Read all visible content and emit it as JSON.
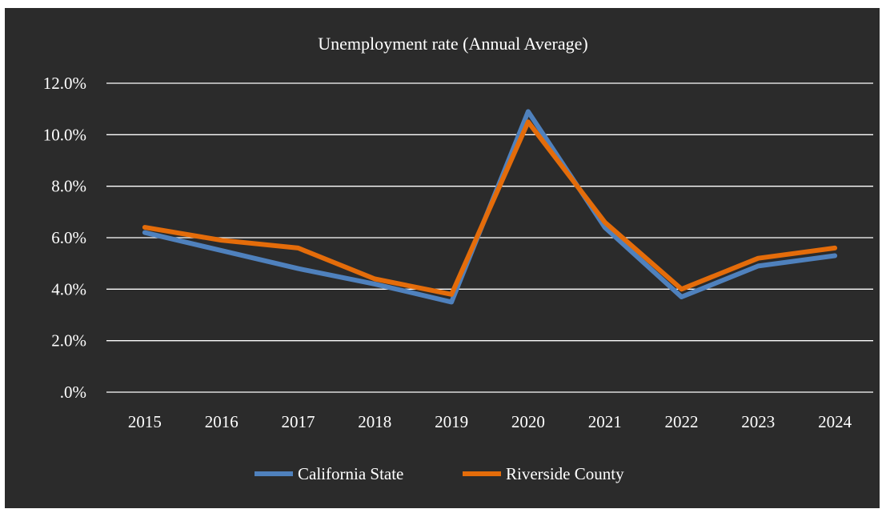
{
  "chart_data": {
    "type": "line",
    "title": "Unemployment rate (Annual Average)",
    "categories": [
      "2015",
      "2016",
      "2017",
      "2018",
      "2019",
      "2020",
      "2021",
      "2022",
      "2023",
      "2024"
    ],
    "ylim": [
      0,
      12
    ],
    "yticks": [
      0,
      2,
      4,
      6,
      8,
      10,
      12
    ],
    "ytick_labels": [
      ".0%",
      "2.0%",
      "4.0%",
      "6.0%",
      "8.0%",
      "10.0%",
      "12.0%"
    ],
    "grid": true,
    "legend_position": "bottom",
    "series": [
      {
        "name": "California State",
        "color": "#4f81bd",
        "values": [
          6.2,
          5.5,
          4.8,
          4.2,
          3.5,
          10.9,
          6.4,
          3.7,
          4.9,
          5.3
        ]
      },
      {
        "name": "Riverside County",
        "color": "#e46c0a",
        "values": [
          6.4,
          5.9,
          5.6,
          4.4,
          3.8,
          10.5,
          6.6,
          4.0,
          5.2,
          5.6
        ]
      }
    ],
    "colors": {
      "background": "#2b2b2b",
      "gridline": "#ffffff",
      "text": "#ffffff"
    }
  }
}
